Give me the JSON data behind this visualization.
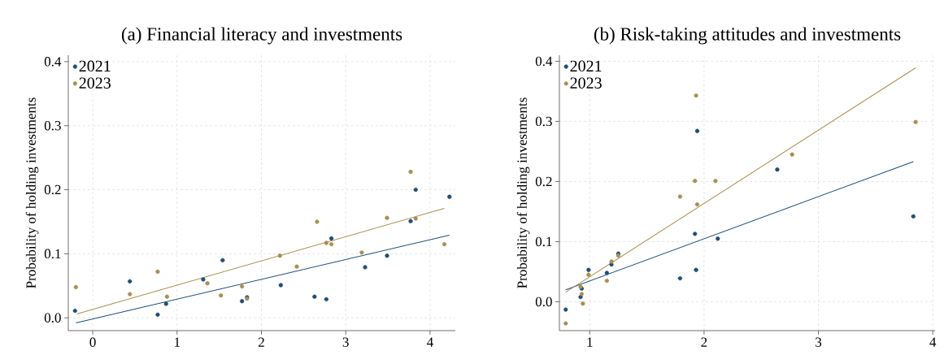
{
  "chart_data": [
    {
      "type": "scatter",
      "title": "(a) Financial literacy and investments",
      "ylabel": "Probability of holding investments",
      "xlim": [
        -0.29,
        4.3
      ],
      "ylim": [
        -0.02,
        0.41
      ],
      "xticks": [
        0,
        1,
        2,
        3,
        4
      ],
      "yticks": [
        {
          "value": 0,
          "label": "0.0"
        },
        {
          "value": 0.1,
          "label": "0.1"
        },
        {
          "value": 0.2,
          "label": "0.2"
        },
        {
          "value": 0.3,
          "label": "0.3"
        },
        {
          "value": 0.4,
          "label": "0.4"
        }
      ],
      "grid": true,
      "legend": "top left",
      "marker": "circle",
      "series": [
        {
          "name": "2021",
          "color": "#1f4e79",
          "x": [
            -0.21,
            0.44,
            0.77,
            0.87,
            1.31,
            1.54,
            1.77,
            1.83,
            2.23,
            2.63,
            2.77,
            2.83,
            3.23,
            3.49,
            3.77,
            3.83,
            4.23
          ],
          "values": [
            0.011,
            0.057,
            0.005,
            0.022,
            0.06,
            0.09,
            0.026,
            0.032,
            0.051,
            0.033,
            0.029,
            0.124,
            0.079,
            0.097,
            0.151,
            0.2,
            0.189
          ]
        },
        {
          "name": "2023",
          "color": "#a8904f",
          "x": [
            -0.2,
            0.44,
            0.77,
            0.88,
            1.36,
            1.52,
            1.77,
            1.83,
            2.22,
            2.42,
            2.66,
            2.77,
            2.83,
            3.19,
            3.49,
            3.77,
            3.83,
            4.17
          ],
          "values": [
            0.048,
            0.037,
            0.072,
            0.033,
            0.054,
            0.035,
            0.049,
            0.03,
            0.097,
            0.08,
            0.15,
            0.117,
            0.115,
            0.102,
            0.156,
            0.228,
            0.155,
            0.115
          ]
        },
        {
          "type": "line",
          "marker": "none",
          "color": "#1f4e79",
          "x": [
            -0.2,
            4.23
          ],
          "values": [
            -0.008,
            0.129
          ]
        },
        {
          "type": "line",
          "marker": "none",
          "color": "#a8904f",
          "x": [
            -0.19,
            4.17
          ],
          "values": [
            0.006,
            0.171
          ]
        }
      ]
    },
    {
      "type": "scatter",
      "title": "(b) Risk-taking attitudes and investments",
      "ylabel": "Probability of holding investments",
      "xlim": [
        0.735,
        4.02
      ],
      "ylim": [
        -0.048,
        0.41
      ],
      "xticks": [
        1,
        2,
        3,
        4
      ],
      "yticks": [
        {
          "value": 0,
          "label": "0.0"
        },
        {
          "value": 0.1,
          "label": "0.1"
        },
        {
          "value": 0.2,
          "label": "0.2"
        },
        {
          "value": 0.3,
          "label": "0.3"
        },
        {
          "value": 0.4,
          "label": "0.4"
        }
      ],
      "grid": true,
      "legend": "top left",
      "marker": "circle",
      "series": [
        {
          "name": "2021",
          "color": "#1f4e79",
          "x": [
            0.79,
            0.92,
            0.93,
            0.99,
            1.15,
            1.19,
            1.25,
            1.79,
            1.92,
            1.93,
            1.94,
            2.12,
            2.64,
            3.83
          ],
          "values": [
            -0.013,
            0.008,
            0.022,
            0.053,
            0.048,
            0.062,
            0.08,
            0.039,
            0.113,
            0.053,
            0.284,
            0.105,
            0.22,
            0.142
          ]
        },
        {
          "name": "2023",
          "color": "#a8904f",
          "x": [
            0.79,
            0.92,
            0.93,
            0.94,
            0.99,
            1.15,
            1.19,
            1.25,
            1.79,
            1.92,
            1.93,
            1.94,
            2.1,
            2.77,
            3.85
          ],
          "values": [
            -0.036,
            0.025,
            0.013,
            -0.003,
            0.045,
            0.035,
            0.067,
            0.077,
            0.175,
            0.201,
            0.343,
            0.162,
            0.201,
            0.245,
            0.299
          ]
        },
        {
          "type": "line",
          "marker": "none",
          "color": "#1f4e79",
          "x": [
            0.79,
            3.83
          ],
          "values": [
            0.02,
            0.233
          ]
        },
        {
          "type": "line",
          "marker": "none",
          "color": "#a8904f",
          "x": [
            0.79,
            3.85
          ],
          "values": [
            0.016,
            0.389
          ]
        }
      ]
    }
  ]
}
